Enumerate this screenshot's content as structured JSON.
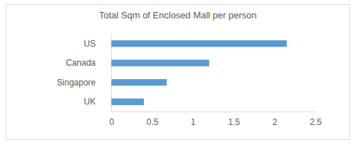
{
  "chart_data": {
    "type": "bar",
    "orientation": "horizontal",
    "title": "Total Sqm of Enclosed Mall per person",
    "categories": [
      "US",
      "Canada",
      "Singapore",
      "UK"
    ],
    "values": [
      2.15,
      1.2,
      0.68,
      0.4
    ],
    "color": "#5b9bd5",
    "xlim": [
      0,
      2.5
    ],
    "xticks": [
      0,
      0.5,
      1,
      1.5,
      2,
      2.5
    ],
    "grid": false
  }
}
